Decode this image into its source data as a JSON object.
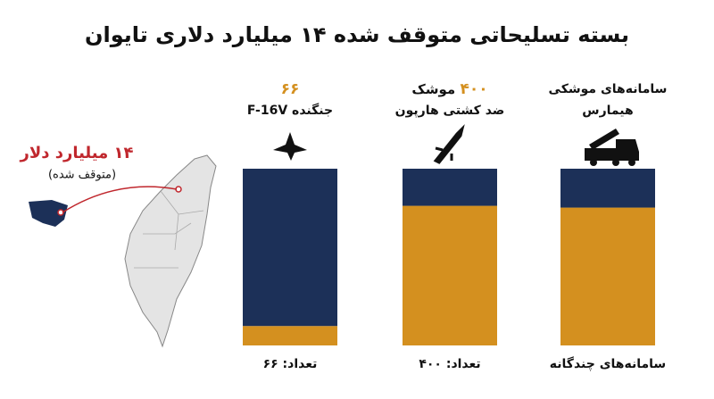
{
  "chart_data": {
    "type": "bar",
    "title": "بسته تسلیحاتی متوقف شده ۱۴ میلیارد دلاری تایوان",
    "annotation": {
      "amount": "۱۴ میلیارد دلار",
      "note": "(متوقف شده)"
    },
    "columns": [
      {
        "highlight": "۶۶",
        "lines": [
          "جنگنده F-16V"
        ],
        "footer": "تعداد: ۶۶"
      },
      {
        "highlight": "۴۰۰",
        "lines": [
          "موشک",
          "ضد کشتی هارپون"
        ],
        "footer": "تعداد: ۴۰۰"
      },
      {
        "lines": [
          "سامانه‌های موشکی",
          "هیمارس"
        ],
        "footer": "سامانه‌های چندگانه"
      }
    ],
    "ylim": [
      0,
      100
    ],
    "series": [
      {
        "color": "#d4901f",
        "values": [
          11,
          79,
          78
        ]
      },
      {
        "color": "#1c3058",
        "values": [
          89,
          21,
          22
        ]
      }
    ]
  }
}
